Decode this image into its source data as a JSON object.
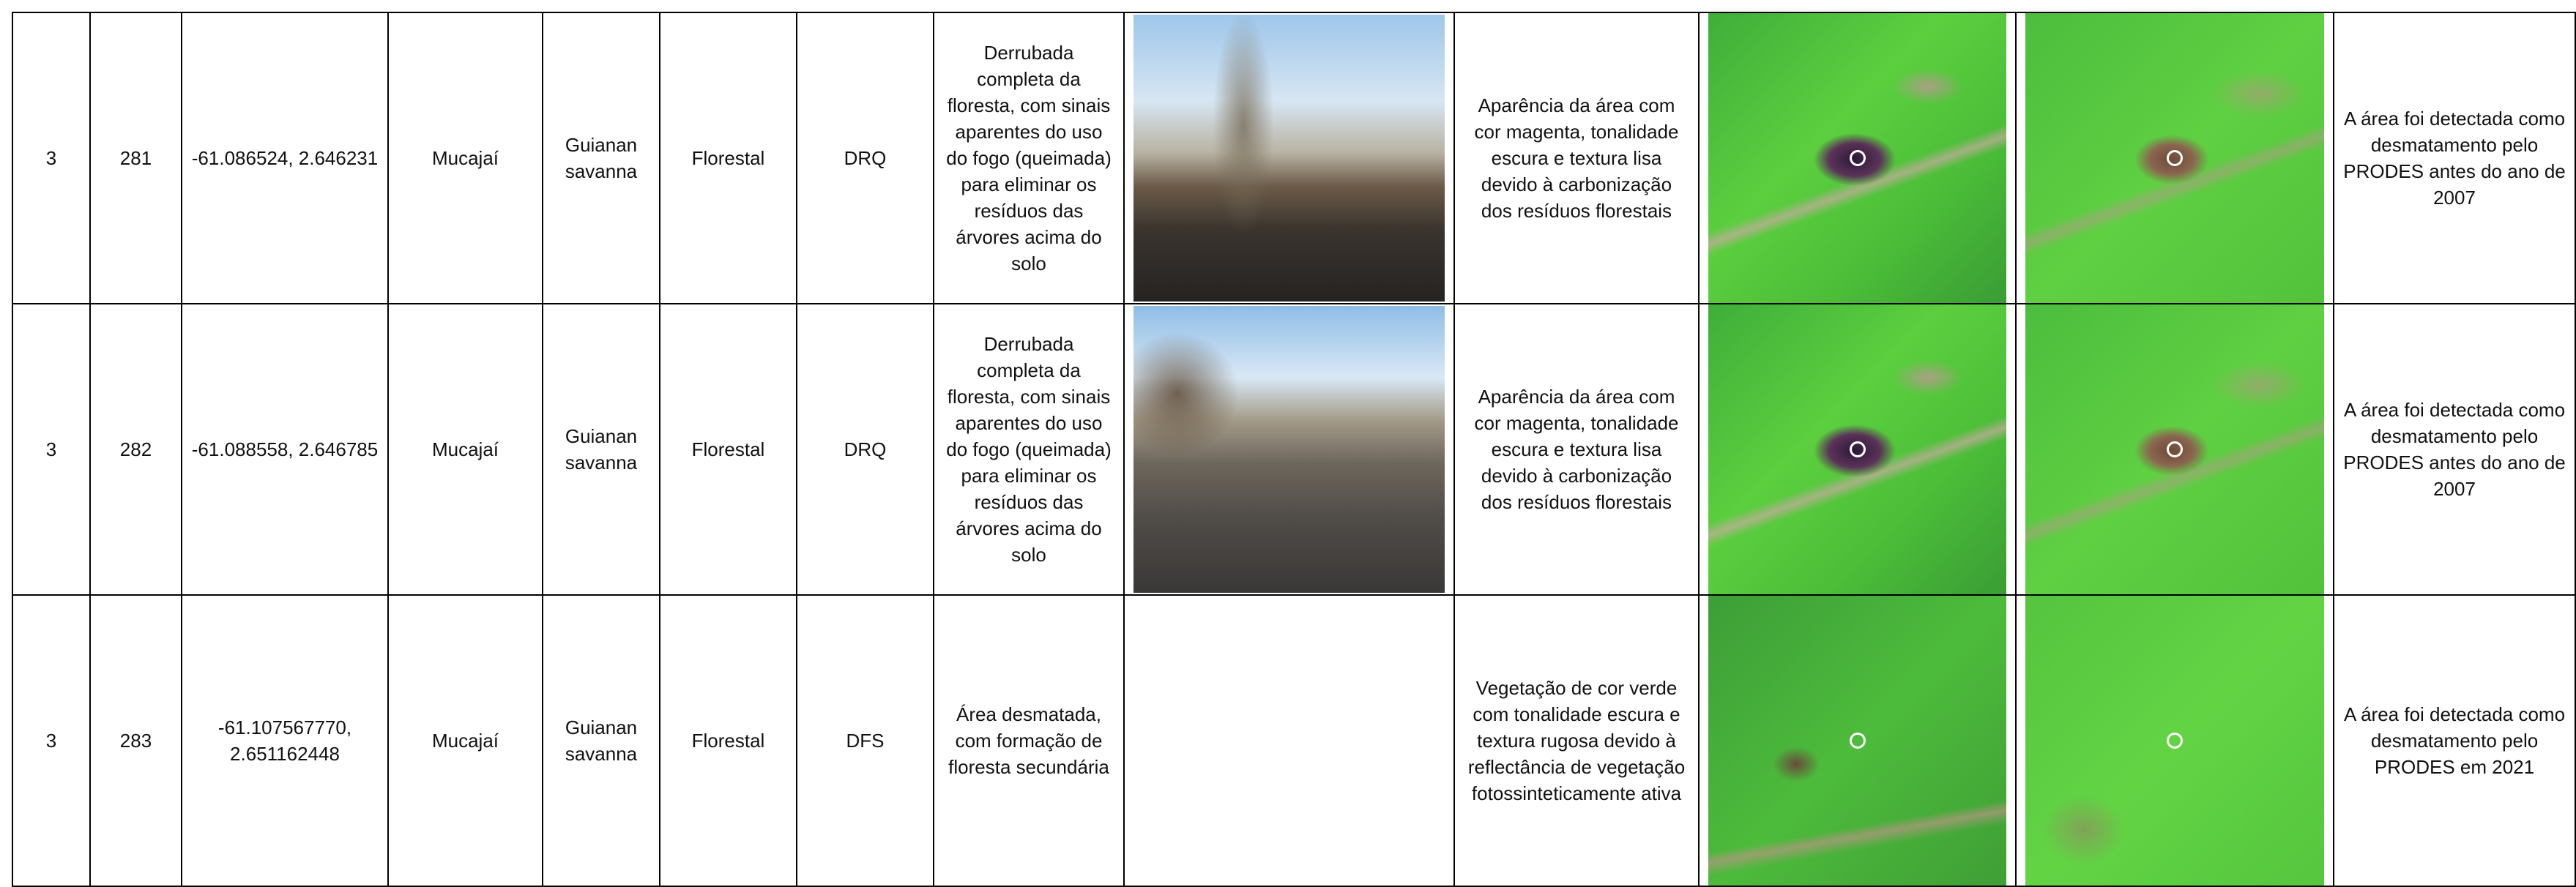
{
  "table": {
    "rows": [
      [
        "3",
        "281",
        "-61.086524, 2.646231",
        "Mucajaí",
        "Guianan savanna",
        "Florestal",
        "DRQ",
        "Derrubada completa da floresta, com sinais aparentes do uso do fogo (queimada) para eliminar os resíduos das árvores acima do solo",
        "Aparência da área com cor magenta, tonalidade escura e textura lisa devido à carbonização dos resíduos florestais",
        "A área foi detectada como desmatamento pelo PRODES antes do ano de 2007"
      ],
      [
        "3",
        "282",
        "-61.088558, 2.646785",
        "Mucajaí",
        "Guianan savanna",
        "Florestal",
        "DRQ",
        "Derrubada completa da floresta, com sinais aparentes do uso do fogo (queimada) para eliminar os resíduos das árvores acima do solo",
        "Aparência da área com cor magenta, tonalidade escura e textura lisa devido à carbonização dos resíduos florestais",
        "A área foi detectada como desmatamento pelo PRODES antes do ano de 2007"
      ],
      [
        "3",
        "283",
        "-61.107567770, 2.651162448",
        "Mucajaí",
        "Guianan savanna",
        "Florestal",
        "DFS",
        "Área desmatada, com formação de floresta secundária",
        "Vegetação de cor verde com tonalidade escura e textura rugosa devido à reflectância de vegetação fotossinteticamente ativa",
        "A área foi detectada como desmatamento pelo PRODES em 2021"
      ]
    ]
  }
}
